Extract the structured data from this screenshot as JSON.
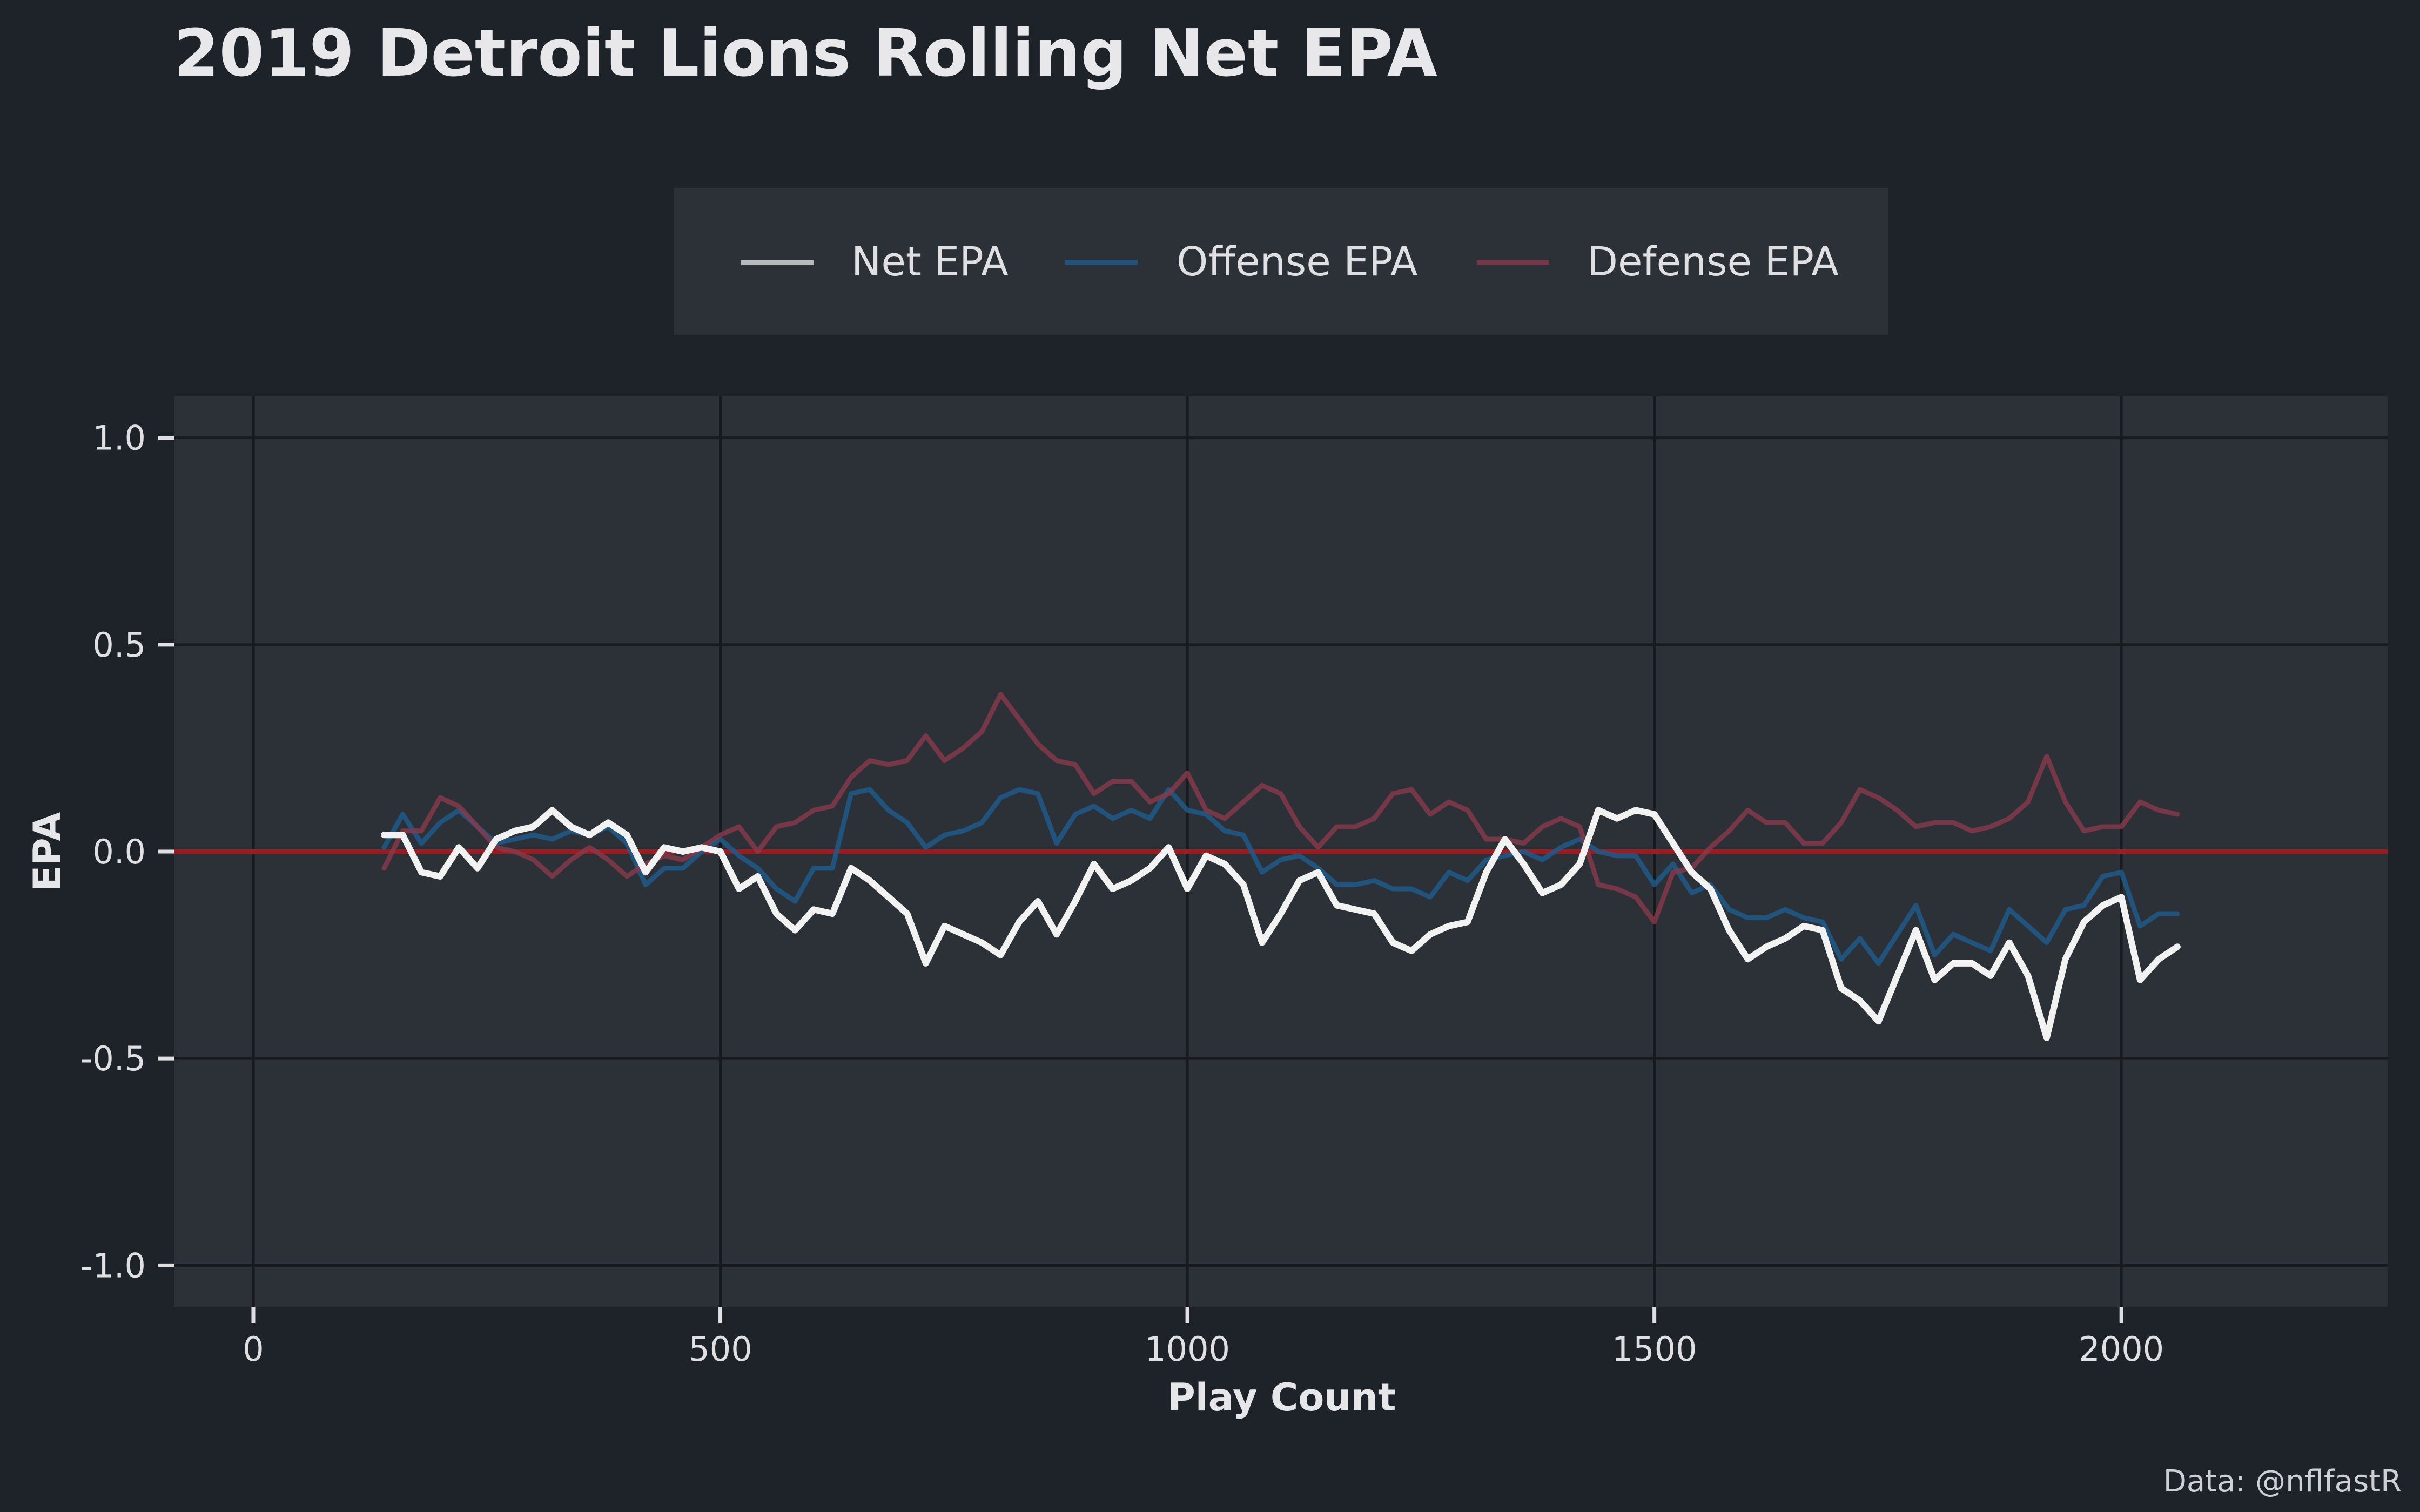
{
  "chart_data": {
    "type": "line",
    "title": "2019 Detroit Lions Rolling Net EPA",
    "xlabel": "Play Count",
    "ylabel": "EPA",
    "caption": "Data: @nflfastR",
    "xlim": [
      -85,
      2285
    ],
    "ylim": [
      -1.1,
      1.1
    ],
    "xticks": [
      0,
      500,
      1000,
      1500,
      2000
    ],
    "xtick_labels": [
      "0",
      "500",
      "1000",
      "1500",
      "2000"
    ],
    "yticks": [
      1.0,
      0.5,
      0.0,
      -0.5,
      -1.0
    ],
    "ytick_labels": [
      "1.0",
      "0.5",
      "0.0",
      "-0.5",
      "-1.0"
    ],
    "grid": true,
    "legend_position": "top",
    "reference_line": {
      "y": 0,
      "color": "#9e1b22"
    },
    "x": [
      140,
      160,
      180,
      200,
      220,
      240,
      260,
      280,
      300,
      320,
      340,
      360,
      380,
      400,
      420,
      440,
      460,
      480,
      500,
      520,
      540,
      560,
      580,
      600,
      620,
      640,
      660,
      680,
      700,
      720,
      740,
      760,
      780,
      800,
      820,
      840,
      860,
      880,
      900,
      920,
      940,
      960,
      980,
      1000,
      1020,
      1040,
      1060,
      1080,
      1100,
      1120,
      1140,
      1160,
      1180,
      1200,
      1220,
      1240,
      1260,
      1280,
      1300,
      1320,
      1340,
      1360,
      1380,
      1400,
      1420,
      1440,
      1460,
      1480,
      1500,
      1520,
      1540,
      1560,
      1580,
      1600,
      1620,
      1640,
      1660,
      1680,
      1700,
      1720,
      1740,
      1760,
      1780,
      1800,
      1820,
      1840,
      1860,
      1880,
      1900,
      1920,
      1940,
      1960,
      1980,
      2000,
      2020,
      2040,
      2060
    ],
    "series": [
      {
        "name": "Net EPA",
        "color": "#f2f2f2",
        "values": [
          0.04,
          0.04,
          -0.05,
          -0.06,
          0.01,
          -0.04,
          0.03,
          0.05,
          0.06,
          0.1,
          0.06,
          0.04,
          0.07,
          0.04,
          -0.05,
          0.01,
          0.0,
          0.01,
          0.0,
          -0.09,
          -0.06,
          -0.15,
          -0.19,
          -0.14,
          -0.15,
          -0.04,
          -0.07,
          -0.11,
          -0.15,
          -0.27,
          -0.18,
          -0.2,
          -0.22,
          -0.25,
          -0.17,
          -0.12,
          -0.2,
          -0.12,
          -0.03,
          -0.09,
          -0.07,
          -0.04,
          0.01,
          -0.09,
          -0.01,
          -0.03,
          -0.08,
          -0.22,
          -0.15,
          -0.07,
          -0.05,
          -0.13,
          -0.14,
          -0.15,
          -0.22,
          -0.24,
          -0.2,
          -0.18,
          -0.17,
          -0.05,
          0.03,
          -0.03,
          -0.1,
          -0.08,
          -0.03,
          0.1,
          0.08,
          0.1,
          0.09,
          0.02,
          -0.05,
          -0.09,
          -0.19,
          -0.26,
          -0.23,
          -0.21,
          -0.18,
          -0.19,
          -0.33,
          -0.36,
          -0.41,
          -0.3,
          -0.19,
          -0.31,
          -0.27,
          -0.27,
          -0.3,
          -0.22,
          -0.3,
          -0.45,
          -0.26,
          -0.17,
          -0.13,
          -0.11,
          -0.31,
          -0.26,
          -0.23
        ]
      },
      {
        "name": "Offense EPA",
        "color": "#1f5a8a",
        "values": [
          0.01,
          0.09,
          0.02,
          0.07,
          0.1,
          0.06,
          0.02,
          0.03,
          0.04,
          0.03,
          0.05,
          0.04,
          0.06,
          0.02,
          -0.08,
          -0.04,
          -0.04,
          0.0,
          0.03,
          -0.01,
          -0.04,
          -0.09,
          -0.12,
          -0.04,
          -0.04,
          0.14,
          0.15,
          0.1,
          0.07,
          0.01,
          0.04,
          0.05,
          0.07,
          0.13,
          0.15,
          0.14,
          0.02,
          0.09,
          0.11,
          0.08,
          0.1,
          0.08,
          0.15,
          0.1,
          0.09,
          0.05,
          0.04,
          -0.05,
          -0.02,
          -0.01,
          -0.04,
          -0.08,
          -0.08,
          -0.07,
          -0.09,
          -0.09,
          -0.11,
          -0.05,
          -0.07,
          -0.02,
          -0.01,
          0.0,
          -0.02,
          0.01,
          0.03,
          0.0,
          -0.01,
          -0.01,
          -0.08,
          -0.03,
          -0.1,
          -0.08,
          -0.14,
          -0.16,
          -0.16,
          -0.14,
          -0.16,
          -0.17,
          -0.26,
          -0.21,
          -0.27,
          -0.2,
          -0.13,
          -0.25,
          -0.2,
          -0.22,
          -0.24,
          -0.14,
          -0.18,
          -0.22,
          -0.14,
          -0.13,
          -0.06,
          -0.05,
          -0.18,
          -0.15,
          -0.15
        ]
      },
      {
        "name": "Defense EPA",
        "color": "#8a3a4a",
        "values": [
          -0.04,
          0.05,
          0.05,
          0.13,
          0.11,
          0.06,
          0.01,
          0.0,
          -0.02,
          -0.06,
          -0.02,
          0.01,
          -0.02,
          -0.06,
          -0.03,
          -0.01,
          -0.02,
          0.01,
          0.04,
          0.06,
          0.0,
          0.06,
          0.07,
          0.1,
          0.11,
          0.18,
          0.22,
          0.21,
          0.22,
          0.28,
          0.22,
          0.25,
          0.29,
          0.38,
          0.32,
          0.26,
          0.22,
          0.21,
          0.14,
          0.17,
          0.17,
          0.12,
          0.14,
          0.19,
          0.1,
          0.08,
          0.12,
          0.16,
          0.14,
          0.06,
          0.01,
          0.06,
          0.06,
          0.08,
          0.14,
          0.15,
          0.09,
          0.12,
          0.1,
          0.03,
          0.03,
          0.02,
          0.06,
          0.08,
          0.06,
          -0.08,
          -0.09,
          -0.11,
          -0.17,
          -0.05,
          -0.04,
          0.01,
          0.05,
          0.1,
          0.07,
          0.07,
          0.02,
          0.02,
          0.07,
          0.15,
          0.13,
          0.1,
          0.06,
          0.07,
          0.07,
          0.05,
          0.06,
          0.08,
          0.12,
          0.23,
          0.12,
          0.05,
          0.06,
          0.06,
          0.12,
          0.1,
          0.09
        ]
      }
    ]
  }
}
